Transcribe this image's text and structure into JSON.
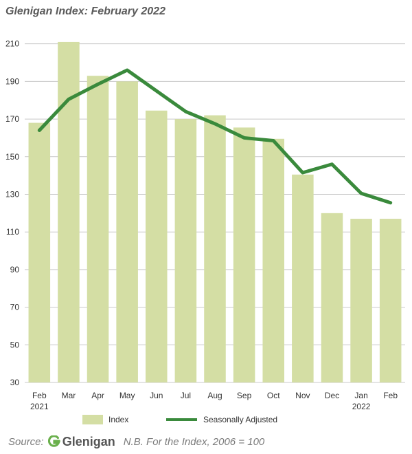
{
  "title": "Glenigan Index: February 2022",
  "colors": {
    "bar": "#d4dea4",
    "line": "#3a8a3c",
    "grid": "#c8c8c8",
    "logo_green": "#6ab04c"
  },
  "chart_data": {
    "type": "bar",
    "categories": [
      "Feb",
      "Mar",
      "Apr",
      "May",
      "Jun",
      "Jul",
      "Aug",
      "Sep",
      "Oct",
      "Nov",
      "Dec",
      "Jan",
      "Feb"
    ],
    "category_sublabels": [
      "2021",
      "",
      "",
      "",
      "",
      "",
      "",
      "",
      "",
      "",
      "",
      "2022",
      ""
    ],
    "series": [
      {
        "name": "Index",
        "type": "bar",
        "values": [
          168,
          211,
          193,
          190,
          174.5,
          170,
          172,
          165.5,
          159.5,
          140.5,
          120,
          117,
          117
        ]
      },
      {
        "name": "Seasonally Adjusted",
        "type": "line",
        "values": [
          164,
          180.5,
          188.5,
          196,
          185,
          174,
          167.5,
          160,
          158.5,
          141.5,
          146,
          130.5,
          125.5
        ]
      }
    ],
    "yticks": [
      30,
      50,
      70,
      90,
      110,
      130,
      150,
      170,
      190,
      210
    ],
    "ylim": [
      30,
      215
    ],
    "grid": true,
    "legend_position": "bottom"
  },
  "source": {
    "label": "Source:",
    "brand": "Glenigan",
    "note": "N.B. For the Index, 2006 = 100"
  }
}
